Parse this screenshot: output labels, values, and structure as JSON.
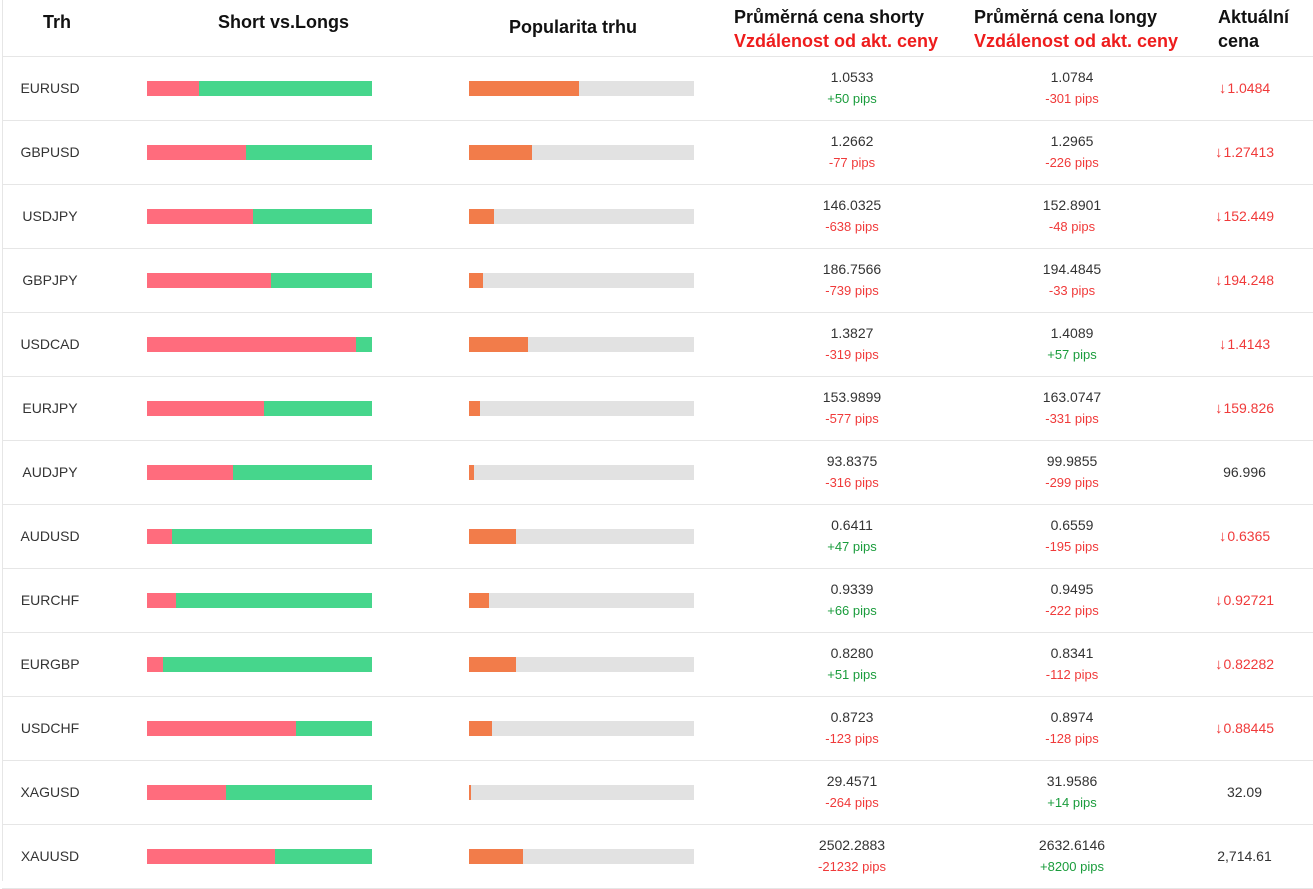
{
  "colors": {
    "short": "#ff6c7d",
    "long": "#46d68c",
    "popularity": "#f27c4a",
    "track": "#e2e2e2",
    "negative": "#f03a3a",
    "positive": "#1a9c3c",
    "header_red": "#ee1c1c"
  },
  "header": {
    "trh": "Trh",
    "short_vs_longs": "Short vs.Longs",
    "popularita": "Popularita trhu",
    "avg_short": "Průměrná cena shorty",
    "avg_short_sub": "Vzdálenost od akt. ceny",
    "avg_long": "Průměrná cena longy",
    "avg_long_sub": "Vzdálenost od akt. ceny",
    "current_l1": "Aktuální",
    "current_l2": "cena"
  },
  "icons": {
    "down": "↓"
  },
  "rows": [
    {
      "symbol": "EURUSD",
      "short_pct": 0.23,
      "popularity": 0.49,
      "short_avg": "1.0533",
      "short_pips": "+50 pips",
      "long_avg": "1.0784",
      "long_pips": "-301 pips",
      "current": "1.0484",
      "down": true
    },
    {
      "symbol": "GBPUSD",
      "short_pct": 0.44,
      "popularity": 0.28,
      "short_avg": "1.2662",
      "short_pips": "-77 pips",
      "long_avg": "1.2965",
      "long_pips": "-226 pips",
      "current": "1.27413",
      "down": true
    },
    {
      "symbol": "USDJPY",
      "short_pct": 0.47,
      "popularity": 0.11,
      "short_avg": "146.0325",
      "short_pips": "-638 pips",
      "long_avg": "152.8901",
      "long_pips": "-48 pips",
      "current": "152.449",
      "down": true
    },
    {
      "symbol": "GBPJPY",
      "short_pct": 0.55,
      "popularity": 0.06,
      "short_avg": "186.7566",
      "short_pips": "-739 pips",
      "long_avg": "194.4845",
      "long_pips": "-33 pips",
      "current": "194.248",
      "down": true
    },
    {
      "symbol": "USDCAD",
      "short_pct": 0.93,
      "popularity": 0.26,
      "short_avg": "1.3827",
      "short_pips": "-319 pips",
      "long_avg": "1.4089",
      "long_pips": "+57 pips",
      "current": "1.4143",
      "down": true
    },
    {
      "symbol": "EURJPY",
      "short_pct": 0.52,
      "popularity": 0.05,
      "short_avg": "153.9899",
      "short_pips": "-577 pips",
      "long_avg": "163.0747",
      "long_pips": "-331 pips",
      "current": "159.826",
      "down": true
    },
    {
      "symbol": "AUDJPY",
      "short_pct": 0.38,
      "popularity": 0.02,
      "short_avg": "93.8375",
      "short_pips": "-316 pips",
      "long_avg": "99.9855",
      "long_pips": "-299 pips",
      "current": "96.996",
      "down": false
    },
    {
      "symbol": "AUDUSD",
      "short_pct": 0.11,
      "popularity": 0.21,
      "short_avg": "0.6411",
      "short_pips": "+47 pips",
      "long_avg": "0.6559",
      "long_pips": "-195 pips",
      "current": "0.6365",
      "down": true
    },
    {
      "symbol": "EURCHF",
      "short_pct": 0.13,
      "popularity": 0.09,
      "short_avg": "0.9339",
      "short_pips": "+66 pips",
      "long_avg": "0.9495",
      "long_pips": "-222 pips",
      "current": "0.92721",
      "down": true
    },
    {
      "symbol": "EURGBP",
      "short_pct": 0.07,
      "popularity": 0.21,
      "short_avg": "0.8280",
      "short_pips": "+51 pips",
      "long_avg": "0.8341",
      "long_pips": "-112 pips",
      "current": "0.82282",
      "down": true
    },
    {
      "symbol": "USDCHF",
      "short_pct": 0.66,
      "popularity": 0.1,
      "short_avg": "0.8723",
      "short_pips": "-123 pips",
      "long_avg": "0.8974",
      "long_pips": "-128 pips",
      "current": "0.88445",
      "down": true
    },
    {
      "symbol": "XAGUSD",
      "short_pct": 0.35,
      "popularity": 0.01,
      "short_avg": "29.4571",
      "short_pips": "-264 pips",
      "long_avg": "31.9586",
      "long_pips": "+14 pips",
      "current": "32.09",
      "down": false
    },
    {
      "symbol": "XAUUSD",
      "short_pct": 0.57,
      "popularity": 0.24,
      "short_avg": "2502.2883",
      "short_pips": "-21232 pips",
      "long_avg": "2632.6146",
      "long_pips": "+8200 pips",
      "current": "2,714.61",
      "down": false
    }
  ]
}
